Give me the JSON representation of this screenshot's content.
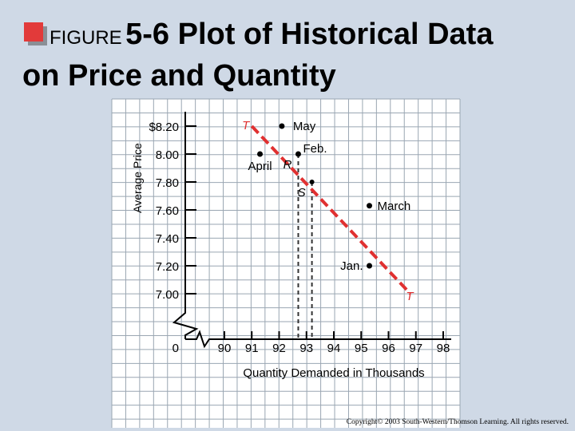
{
  "title": {
    "figure_word": "FIGURE",
    "line1_rest": "5-6 Plot of Historical Data",
    "line2": "on Price and Quantity"
  },
  "copyright": "Copyright© 2003 South-Western/Thomson Learning. All rights reserved.",
  "chart_data": {
    "type": "scatter",
    "title": "",
    "xlabel": "Quantity Demanded in Thousands",
    "ylabel": "Average Price",
    "xlim": [
      90,
      98
    ],
    "ylim": [
      7.0,
      8.2
    ],
    "x_ticks": [
      "90",
      "91",
      "92",
      "93",
      "94",
      "95",
      "96",
      "97",
      "98"
    ],
    "x_tick_values": [
      90,
      91,
      92,
      93,
      94,
      95,
      96,
      97,
      98
    ],
    "y_ticks": [
      "$8.20",
      "8.00",
      "7.80",
      "7.60",
      "7.40",
      "7.20",
      "7.00"
    ],
    "y_tick_values": [
      8.2,
      8.0,
      7.8,
      7.6,
      7.4,
      7.2,
      7.0
    ],
    "origin_label": "0",
    "points": [
      {
        "label": "May",
        "x": 92.1,
        "y": 8.2
      },
      {
        "label": "Feb.",
        "x": 92.7,
        "y": 8.0
      },
      {
        "label": "April",
        "x": 91.3,
        "y": 8.0
      },
      {
        "label": "March",
        "x": 95.3,
        "y": 7.63
      },
      {
        "label": "Jan.",
        "x": 95.3,
        "y": 7.2
      }
    ],
    "point_labels": {
      "R": "R",
      "S": "S"
    },
    "markers": [
      {
        "label": "R",
        "x": 92.7,
        "y": 8.0
      },
      {
        "label": "S",
        "x": 93.2,
        "y": 7.8
      }
    ],
    "demand_line": {
      "label": "T",
      "from": {
        "x": 91.0,
        "y": 8.2
      },
      "to": {
        "x": 96.8,
        "y": 7.0
      },
      "color": "#e03030"
    },
    "dashed_guides": [
      {
        "x": 92.7,
        "y": 8.0
      },
      {
        "x": 93.2,
        "y": 7.8
      }
    ],
    "grid": true,
    "axis_break": true,
    "colors": {
      "grid": "#9aa6b2",
      "paper": "#ffffff",
      "line": "#e03030"
    }
  }
}
